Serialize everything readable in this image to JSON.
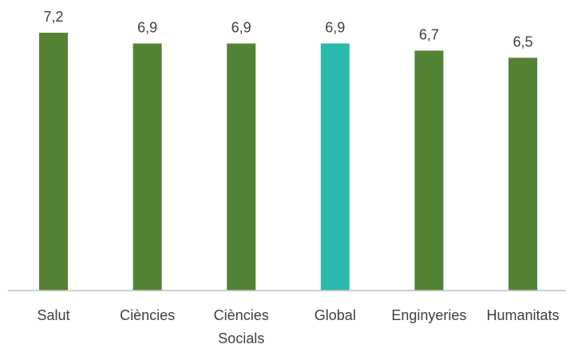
{
  "chart_data": {
    "type": "bar",
    "categories": [
      [
        "Salut"
      ],
      [
        "Ciències"
      ],
      [
        "Ciències",
        "Socials"
      ],
      [
        "Global"
      ],
      [
        "Enginyeries"
      ],
      [
        "Humanitats"
      ]
    ],
    "values": [
      7.2,
      6.9,
      6.9,
      6.9,
      6.7,
      6.5
    ],
    "data_labels": [
      "7,2",
      "6,9",
      "6,9",
      "6,9",
      "6,7",
      "6,5"
    ],
    "highlight_index": 3,
    "ylim": [
      0,
      7.2
    ],
    "grid": false,
    "legend": "none",
    "title": "",
    "xlabel": "",
    "ylabel": ""
  },
  "colors": {
    "bar": "#548235",
    "highlight_bar": "#2BBBAD",
    "axis": "#BFBFBF",
    "text": "#404040"
  }
}
